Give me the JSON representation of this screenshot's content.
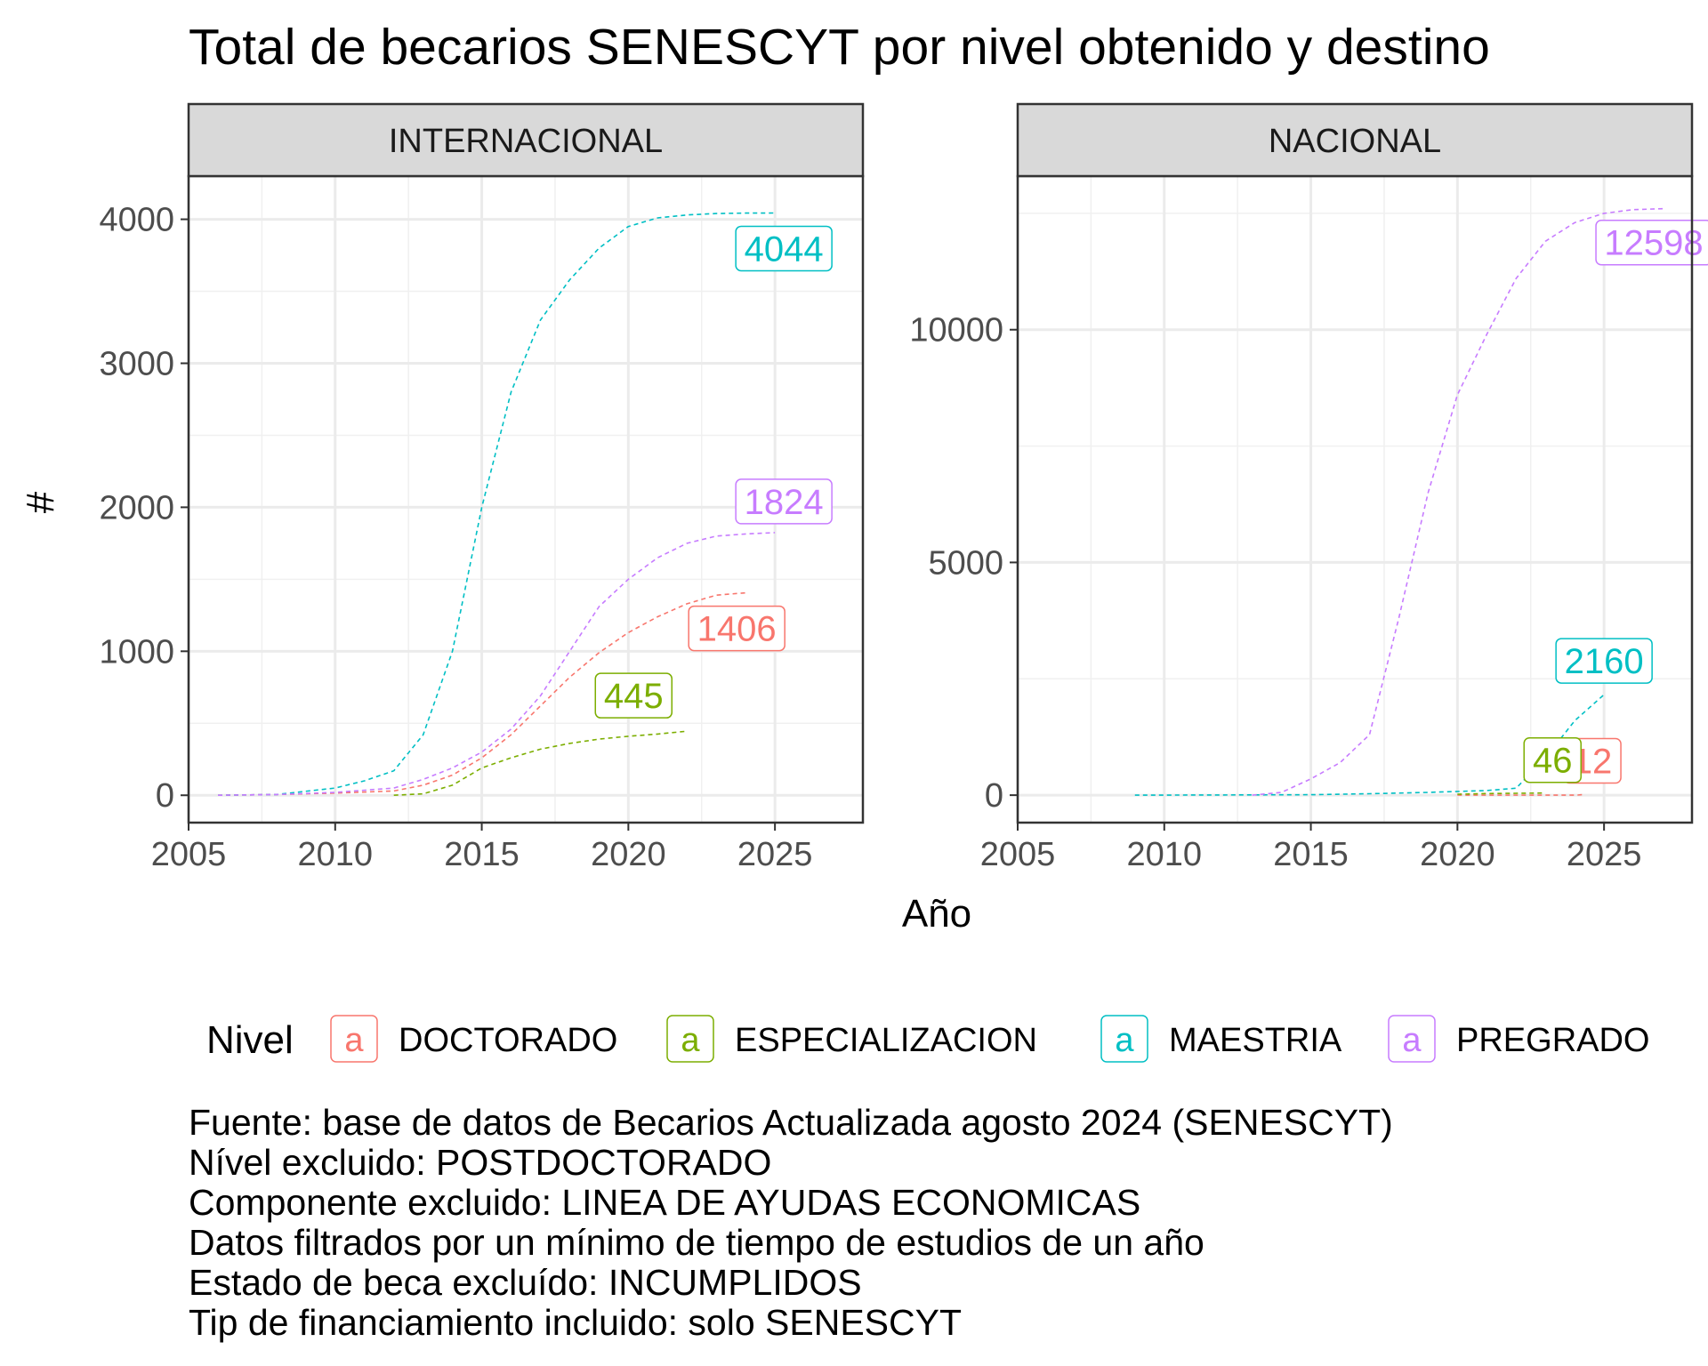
{
  "chart_data": {
    "type": "line",
    "title": "Total de becarios SENESCYT por nivel obtenido y destino",
    "xlabel": "Año",
    "ylabel": "#",
    "legend": {
      "title": "Nivel",
      "position": "bottom",
      "key_glyph": "a",
      "items": [
        {
          "name": "DOCTORADO",
          "color": "#F8766D"
        },
        {
          "name": "ESPECIALIZACION",
          "color": "#7CAE00"
        },
        {
          "name": "MAESTRIA",
          "color": "#00BFC4"
        },
        {
          "name": "PREGRADO",
          "color": "#C77CFF"
        }
      ]
    },
    "line_style": "dashed",
    "grid": true,
    "caption": [
      "Fuente: base de datos de Becarios Actualizada agosto 2024 (SENESCYT)",
      "Nível excluido: POSTDOCTORADO",
      "Componente excluido: LINEA DE AYUDAS ECONOMICAS",
      "Datos filtrados por un mínimo de tiempo de estudios de un año",
      "Estado de beca excluído: INCUMPLIDOS",
      "Tip de financiamiento incluido: solo SENESCYT"
    ],
    "panels": [
      {
        "title": "INTERNACIONAL",
        "xlim": [
          2005,
          2028
        ],
        "ylim": [
          -190,
          4300
        ],
        "x_ticks": [
          2005,
          2010,
          2015,
          2020,
          2025
        ],
        "y_ticks": [
          0,
          1000,
          2000,
          3000,
          4000
        ],
        "y_tick_labels": [
          "0",
          "1000",
          "2000",
          "3000",
          "4000"
        ],
        "series": [
          {
            "name": "DOCTORADO",
            "color": "#F8766D",
            "end_label": "1406",
            "x": [
              2006,
              2008,
              2010,
              2012,
              2013,
              2014,
              2015,
              2016,
              2017,
              2018,
              2019,
              2020,
              2021,
              2022,
              2023,
              2024
            ],
            "y": [
              0,
              5,
              15,
              30,
              70,
              140,
              260,
              420,
              620,
              820,
              990,
              1130,
              1240,
              1330,
              1390,
              1406
            ]
          },
          {
            "name": "ESPECIALIZACION",
            "color": "#7CAE00",
            "end_label": "445",
            "x": [
              2012,
              2013,
              2014,
              2015,
              2016,
              2017,
              2018,
              2019,
              2020,
              2021,
              2022
            ],
            "y": [
              0,
              10,
              70,
              190,
              260,
              320,
              360,
              390,
              410,
              425,
              445
            ]
          },
          {
            "name": "MAESTRIA",
            "color": "#00BFC4",
            "end_label": "4044",
            "x": [
              2006,
              2008,
              2010,
              2011,
              2012,
              2013,
              2014,
              2015,
              2016,
              2017,
              2018,
              2019,
              2020,
              2021,
              2022,
              2023,
              2024,
              2025
            ],
            "y": [
              0,
              5,
              50,
              100,
              170,
              420,
              1000,
              2000,
              2800,
              3300,
              3580,
              3800,
              3950,
              4010,
              4030,
              4040,
              4043,
              4044
            ]
          },
          {
            "name": "PREGRADO",
            "color": "#C77CFF",
            "end_label": "1824",
            "x": [
              2006,
              2008,
              2010,
              2012,
              2013,
              2014,
              2015,
              2016,
              2017,
              2018,
              2019,
              2020,
              2021,
              2022,
              2023,
              2024,
              2025
            ],
            "y": [
              0,
              5,
              20,
              50,
              110,
              190,
              300,
              460,
              690,
              1000,
              1310,
              1500,
              1650,
              1750,
              1800,
              1815,
              1824
            ]
          }
        ]
      },
      {
        "title": "NACIONAL",
        "xlim": [
          2005,
          2028
        ],
        "ylim": [
          -590,
          13300
        ],
        "x_ticks": [
          2005,
          2010,
          2015,
          2020,
          2025
        ],
        "y_ticks": [
          0,
          5000,
          10000
        ],
        "y_tick_labels": [
          "0",
          "5000",
          "10000"
        ],
        "series": [
          {
            "name": "DOCTORADO",
            "color": "#F8766D",
            "end_label": "12",
            "x": [
              2020,
              2022,
              2024,
              2024.1,
              2024.2,
              2024.3
            ],
            "y": [
              0,
              0,
              0,
              2,
              8,
              12
            ]
          },
          {
            "name": "ESPECIALIZACION",
            "color": "#7CAE00",
            "end_label": "46",
            "x": [
              2020,
              2021,
              2022,
              2023
            ],
            "y": [
              20,
              35,
              40,
              46
            ]
          },
          {
            "name": "MAESTRIA",
            "color": "#00BFC4",
            "end_label": "2160",
            "x": [
              2009,
              2012,
              2015,
              2017,
              2019,
              2021,
              2022,
              2023,
              2024,
              2025
            ],
            "y": [
              0,
              5,
              10,
              30,
              60,
              100,
              150,
              800,
              1600,
              2160
            ]
          },
          {
            "name": "PREGRADO",
            "color": "#C77CFF",
            "end_label": "12598",
            "x": [
              2013,
              2014,
              2015,
              2016,
              2017,
              2018,
              2019,
              2020,
              2021,
              2022,
              2023,
              2024,
              2025,
              2026,
              2027
            ],
            "y": [
              0,
              60,
              350,
              700,
              1300,
              3800,
              6500,
              8600,
              9900,
              11100,
              11900,
              12300,
              12500,
              12580,
              12598
            ]
          }
        ]
      }
    ]
  }
}
